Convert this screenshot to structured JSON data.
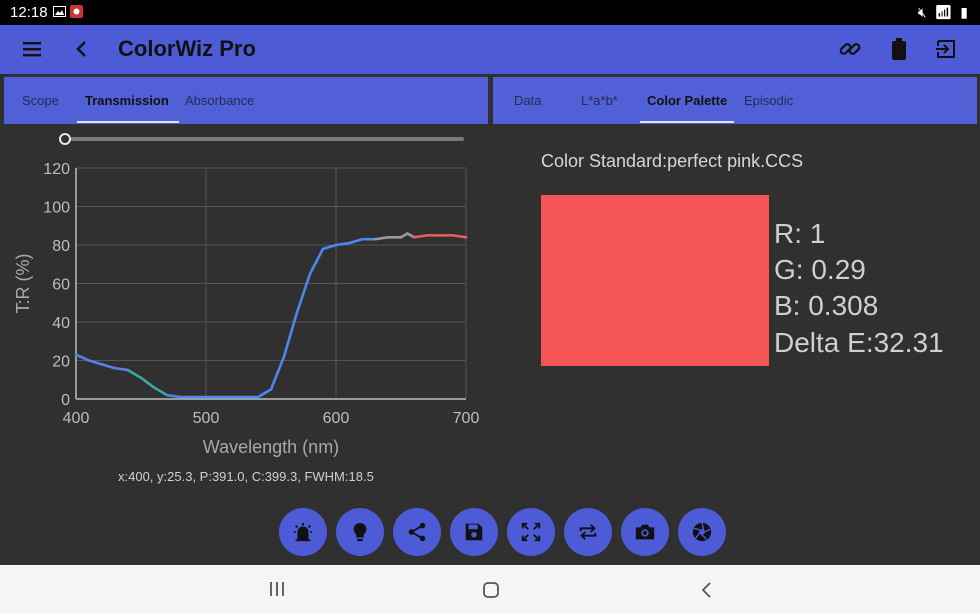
{
  "status_bar": {
    "time": "12:18"
  },
  "app_bar": {
    "title": "ColorWiz Pro",
    "icons": [
      "menu-icon",
      "back-arrow-icon",
      "link-icon",
      "battery-icon",
      "exit-icon"
    ]
  },
  "left_tabs": {
    "items": [
      "Scope",
      "Transmission",
      "Absorbance"
    ],
    "active": "Transmission"
  },
  "right_tabs": {
    "items": [
      "Data",
      "L*a*b*",
      "Color Palette",
      "Episodic"
    ],
    "active": "Color Palette"
  },
  "readout": "x:400,  y:25.3,  P:391.0,  C:399.3,  FWHM:18.5",
  "color_standard": "Color Standard:perfect pink.CCS",
  "color_values": {
    "r": "R: 1",
    "g": "G: 0.29",
    "b": "B: 0.308",
    "delta_e": "Delta E:32.31"
  },
  "swatch_color": "#f55555",
  "accent_color": "#4e5bd6",
  "bottom_buttons": [
    "light-icon",
    "bulb-icon",
    "share-icon",
    "save-icon",
    "expand-icon",
    "repeat-icon",
    "camera-icon",
    "aperture-icon"
  ],
  "chart_data": {
    "type": "line",
    "xlabel": "Wavelength (nm)",
    "ylabel": "T:R (%)",
    "xlim": [
      400,
      700
    ],
    "ylim": [
      0,
      120
    ],
    "xticks": [
      400,
      500,
      600,
      700
    ],
    "yticks": [
      0,
      20,
      40,
      60,
      80,
      100,
      120
    ],
    "grid": true,
    "x": [
      400,
      410,
      420,
      430,
      440,
      450,
      460,
      470,
      480,
      490,
      500,
      510,
      520,
      530,
      540,
      550,
      560,
      570,
      580,
      590,
      600,
      610,
      620,
      630,
      640,
      650,
      655,
      660,
      670,
      680,
      690,
      700
    ],
    "y": [
      23,
      20,
      18,
      16,
      15,
      11,
      6,
      2,
      1,
      1,
      1,
      1,
      1,
      1,
      1,
      5,
      22,
      45,
      65,
      78,
      80,
      81,
      83,
      83,
      84,
      84,
      86,
      84,
      85,
      85,
      85,
      84
    ]
  }
}
